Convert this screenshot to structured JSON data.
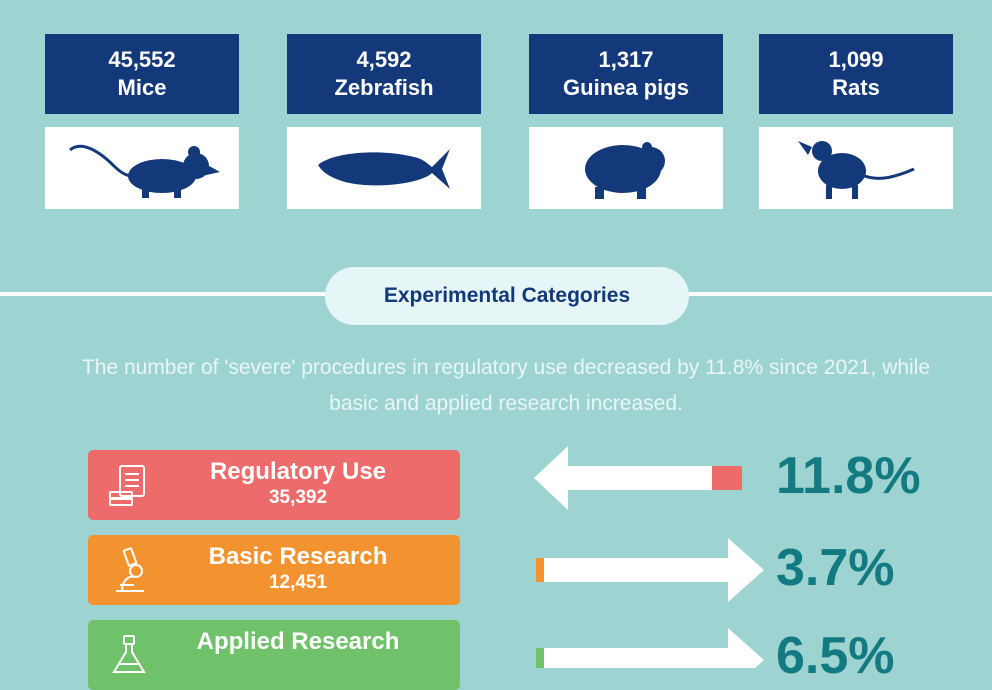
{
  "species": [
    {
      "count": "45,552",
      "name": "Mice",
      "icon": "mouse-icon"
    },
    {
      "count": "4,592",
      "name": "Zebrafish",
      "icon": "zebrafish-icon"
    },
    {
      "count": "1,317",
      "name": "Guinea pigs",
      "icon": "guinea-pig-icon"
    },
    {
      "count": "1,099",
      "name": "Rats",
      "icon": "rat-icon"
    }
  ],
  "section": {
    "title": "Experimental Categories",
    "description": "The number of 'severe' procedures in regulatory use decreased by 11.8% since 2021, while basic and applied research increased."
  },
  "categories": [
    {
      "name": "Regulatory Use",
      "count": "35,392",
      "change": "11.8%",
      "direction": "decrease",
      "color": "#ee6b6b",
      "icon": "document-stack-icon"
    },
    {
      "name": "Basic Research",
      "count": "12,451",
      "change": "3.7%",
      "direction": "increase",
      "color": "#f3932f",
      "icon": "microscope-icon"
    },
    {
      "name": "Applied Research",
      "count": "",
      "change": "6.5%",
      "direction": "increase",
      "color": "#6fc16a",
      "icon": "flask-icon"
    }
  ],
  "colors": {
    "background": "#9dd4d2",
    "navy": "#14397a",
    "teal_text": "#147a82"
  }
}
